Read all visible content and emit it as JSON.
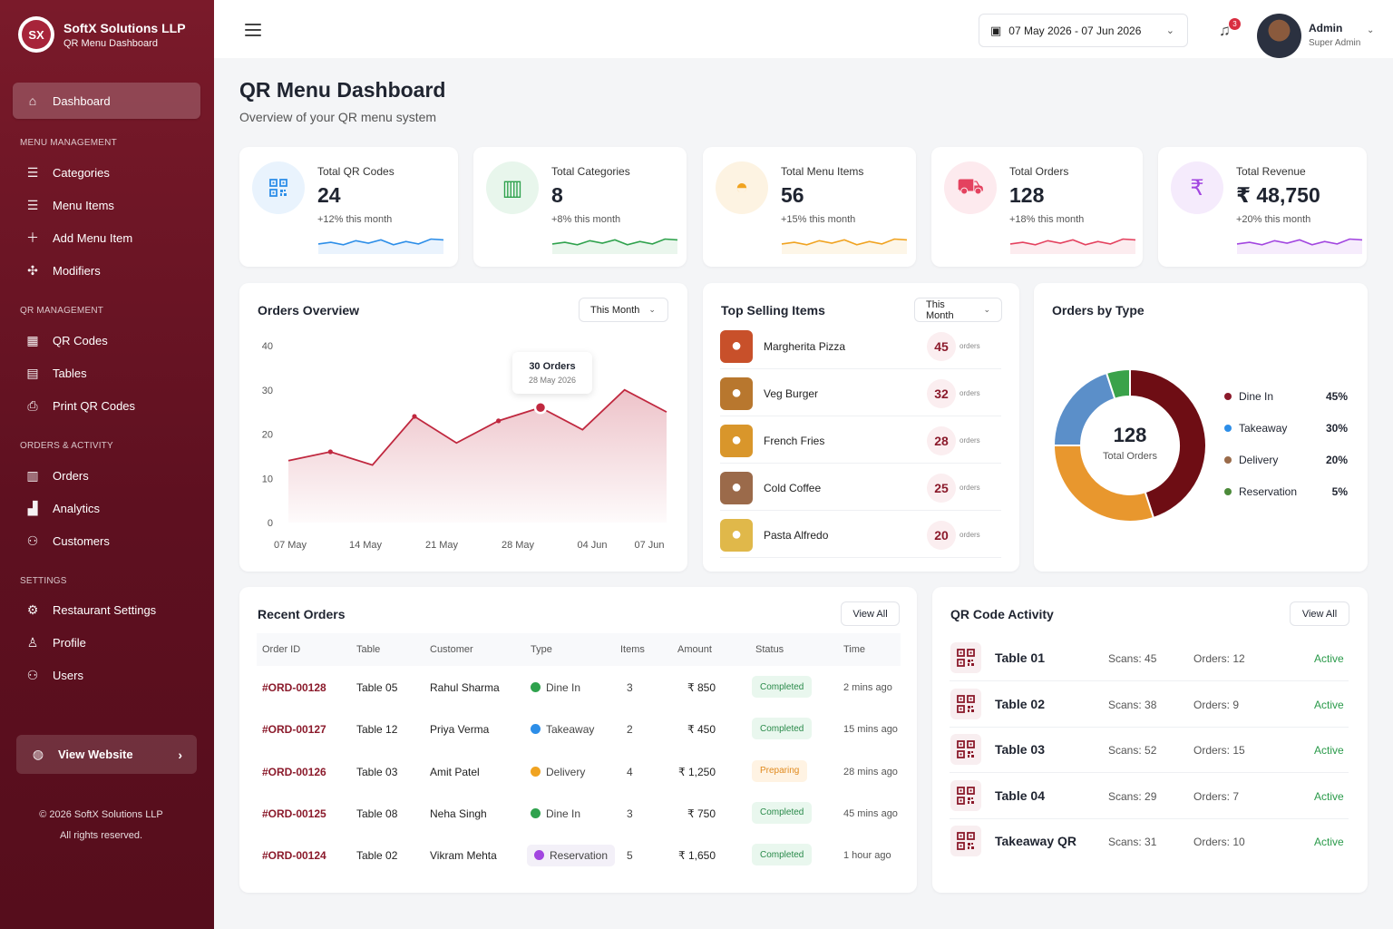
{
  "brand": {
    "logo": "SX",
    "title": "SoftX Solutions LLP",
    "subtitle": "QR Menu Dashboard"
  },
  "sidebar": {
    "dashboard": "Dashboard",
    "sections": [
      "MENU MANAGEMENT",
      "QR MANAGEMENT",
      "ORDERS & ACTIVITY",
      "SETTINGS"
    ],
    "menu_items": [
      "Categories",
      "Menu Items",
      "Add Menu Item",
      "Modifiers"
    ],
    "qr_items": [
      "QR Codes",
      "Tables",
      "Print QR Codes"
    ],
    "order_items": [
      "Orders",
      "Analytics",
      "Customers"
    ],
    "settings_items": [
      "Restaurant Settings",
      "Profile",
      "Users"
    ],
    "view_website": "View Website",
    "copyright": "© 2026 SoftX Solutions LLP",
    "rights": "All rights reserved."
  },
  "topbar": {
    "date_range": "07 May 2026 - 07 Jun 2026",
    "notifications": "3",
    "user_name": "Admin",
    "user_role": "Super Admin"
  },
  "page": {
    "title": "QR Menu Dashboard",
    "subtitle": "Overview of your QR menu system"
  },
  "stats": [
    {
      "label": "Total QR Codes",
      "value": "24",
      "change": "+12% this month",
      "color": "#2d8ee8",
      "bg": "#e9f3fd",
      "icon": "qr-code-icon"
    },
    {
      "label": "Total Categories",
      "value": "8",
      "change": "+8% this month",
      "color": "#2fa24d",
      "bg": "#e8f6ec",
      "icon": "book-icon"
    },
    {
      "label": "Total Menu Items",
      "value": "56",
      "change": "+15% this month",
      "color": "#f0a321",
      "bg": "#fdf3e2",
      "icon": "cloche-icon"
    },
    {
      "label": "Total Orders",
      "value": "128",
      "change": "+18% this month",
      "color": "#e4425f",
      "bg": "#fdeaee",
      "icon": "cart-icon"
    },
    {
      "label": "Total Revenue",
      "value": "₹ 48,750",
      "change": "+20% this month",
      "color": "#a246e0",
      "bg": "#f5ebfc",
      "icon": "rupee-icon"
    }
  ],
  "orders_overview": {
    "title": "Orders Overview",
    "filter": "This Month",
    "tooltip_value": "30 Orders",
    "tooltip_date": "28 May 2026"
  },
  "chart_data": {
    "type": "area",
    "title": "Orders Overview",
    "x_labels": [
      "07 May",
      "14 May",
      "21 May",
      "28 May",
      "04 Jun",
      "07 Jun"
    ],
    "y_ticks": [
      "0",
      "10",
      "20",
      "30",
      "40"
    ],
    "ylim": [
      0,
      40
    ],
    "series": [
      {
        "values": [
          14,
          16,
          13,
          24,
          18,
          23,
          26,
          21,
          30,
          25
        ]
      }
    ],
    "color": "#c0283f"
  },
  "top_selling": {
    "title": "Top Selling Items",
    "filter": "This Month",
    "unit": "orders",
    "items": [
      {
        "name": "Margherita Pizza",
        "count": "45",
        "icon": "pizza-icon"
      },
      {
        "name": "Veg Burger",
        "count": "32",
        "icon": "burger-icon"
      },
      {
        "name": "French Fries",
        "count": "28",
        "icon": "fries-icon"
      },
      {
        "name": "Cold Coffee",
        "count": "25",
        "icon": "coffee-icon"
      },
      {
        "name": "Pasta Alfredo",
        "count": "20",
        "icon": "pasta-icon"
      }
    ]
  },
  "orders_by_type": {
    "title": "Orders by Type",
    "total": "128",
    "total_label": "Total Orders",
    "slices": [
      {
        "name": "Dine In",
        "pct": "45%",
        "value": 45,
        "color": "#6e0d14"
      },
      {
        "name": "Takeaway",
        "pct": "30%",
        "value": 30,
        "color": "#e8972e"
      },
      {
        "name": "Delivery",
        "pct": "20%",
        "value": 20,
        "color": "#5b8fc9"
      },
      {
        "name": "Reservation",
        "pct": "5%",
        "value": 5,
        "color": "#3aa24a"
      }
    ],
    "legend_dot_colors": [
      "#8b1a2b",
      "#2d8ee8",
      "#9a6b4a",
      "#4c8a3a"
    ]
  },
  "recent_orders": {
    "title": "Recent Orders",
    "view_all": "View All",
    "columns": [
      "Order ID",
      "Table",
      "Customer",
      "Type",
      "Items",
      "Amount",
      "Status",
      "Time"
    ],
    "rows": [
      {
        "id": "#ORD-00128",
        "table": "Table 05",
        "customer": "Rahul Sharma",
        "type": "Dine In",
        "items": "3",
        "amount": "₹ 850",
        "status": "Completed",
        "time": "2 mins ago"
      },
      {
        "id": "#ORD-00127",
        "table": "Table 12",
        "customer": "Priya Verma",
        "type": "Takeaway",
        "items": "2",
        "amount": "₹ 450",
        "status": "Completed",
        "time": "15 mins ago"
      },
      {
        "id": "#ORD-00126",
        "table": "Table 03",
        "customer": "Amit Patel",
        "type": "Delivery",
        "items": "4",
        "amount": "₹ 1,250",
        "status": "Preparing",
        "time": "28 mins ago"
      },
      {
        "id": "#ORD-00125",
        "table": "Table 08",
        "customer": "Neha Singh",
        "type": "Dine In",
        "items": "3",
        "amount": "₹ 750",
        "status": "Completed",
        "time": "45 mins ago"
      },
      {
        "id": "#ORD-00124",
        "table": "Table 02",
        "customer": "Vikram Mehta",
        "type": "Reservation",
        "items": "5",
        "amount": "₹ 1,650",
        "status": "Completed",
        "time": "1 hour ago"
      }
    ]
  },
  "qr_activity": {
    "title": "QR Code Activity",
    "view_all": "View All",
    "rows": [
      {
        "name": "Table 01",
        "scans": "Scans: 45",
        "orders": "Orders: 12",
        "status": "Active"
      },
      {
        "name": "Table 02",
        "scans": "Scans: 38",
        "orders": "Orders: 9",
        "status": "Active"
      },
      {
        "name": "Table 03",
        "scans": "Scans: 52",
        "orders": "Orders: 15",
        "status": "Active"
      },
      {
        "name": "Table 04",
        "scans": "Scans: 29",
        "orders": "Orders: 7",
        "status": "Active"
      },
      {
        "name": "Takeaway QR",
        "scans": "Scans: 31",
        "orders": "Orders: 10",
        "status": "Active"
      }
    ]
  }
}
